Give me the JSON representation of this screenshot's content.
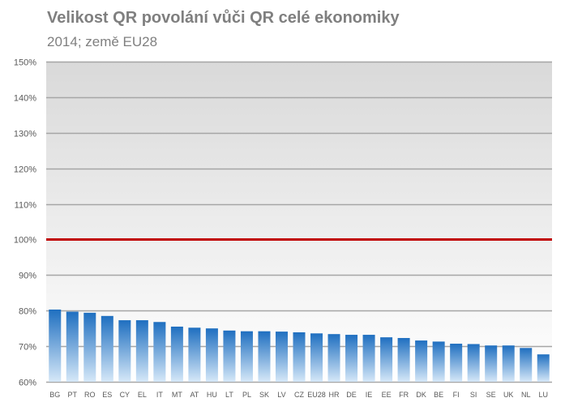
{
  "chart_data": {
    "type": "bar",
    "title": "Velikost QR povolání vůči QR celé ekonomiky",
    "subtitle": "2014; země EU28",
    "xlabel": "",
    "ylabel": "",
    "categories": [
      "BG",
      "PT",
      "RO",
      "ES",
      "CY",
      "EL",
      "IT",
      "MT",
      "AT",
      "HU",
      "LT",
      "PL",
      "SK",
      "LV",
      "CZ",
      "EU28",
      "HR",
      "DE",
      "IE",
      "EE",
      "FR",
      "DK",
      "BE",
      "FI",
      "SI",
      "SE",
      "UK",
      "NL",
      "LU"
    ],
    "values": [
      80.3,
      79.7,
      79.4,
      78.5,
      77.3,
      77.3,
      76.8,
      75.5,
      75.2,
      75.0,
      74.4,
      74.2,
      74.2,
      74.1,
      73.9,
      73.6,
      73.4,
      73.2,
      73.2,
      72.5,
      72.3,
      71.6,
      71.3,
      70.7,
      70.6,
      70.2,
      70.2,
      69.5,
      67.7
    ],
    "ylim": [
      60,
      150
    ],
    "y_tick_step": 10,
    "y_tick_suffix": "%",
    "grid": true,
    "reference_line": {
      "value": 100,
      "color": "#c00000"
    },
    "colors": {
      "bar_top": "#1f6fc0",
      "bar_bottom": "#d6e8f8",
      "plot_bg_top": "#d9d9d9",
      "plot_bg_bottom": "#ffffff",
      "grid": "#a6a6a6",
      "text": "#7f7f7f"
    }
  }
}
